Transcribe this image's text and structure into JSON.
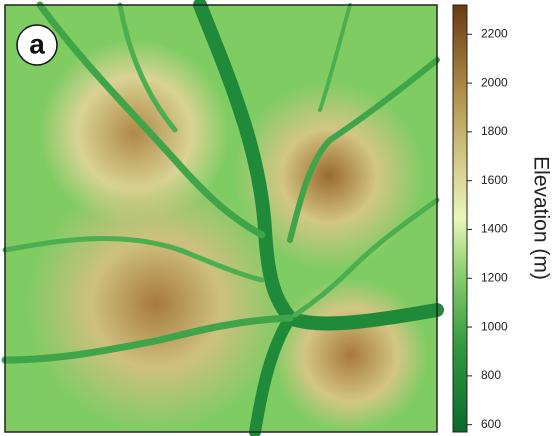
{
  "panel_label": "a",
  "colorbar": {
    "label": "Elevation (m)",
    "lim": [
      570,
      2320
    ],
    "ticks": [
      600,
      800,
      1000,
      1200,
      1400,
      1600,
      1800,
      2000,
      2200
    ]
  }
}
